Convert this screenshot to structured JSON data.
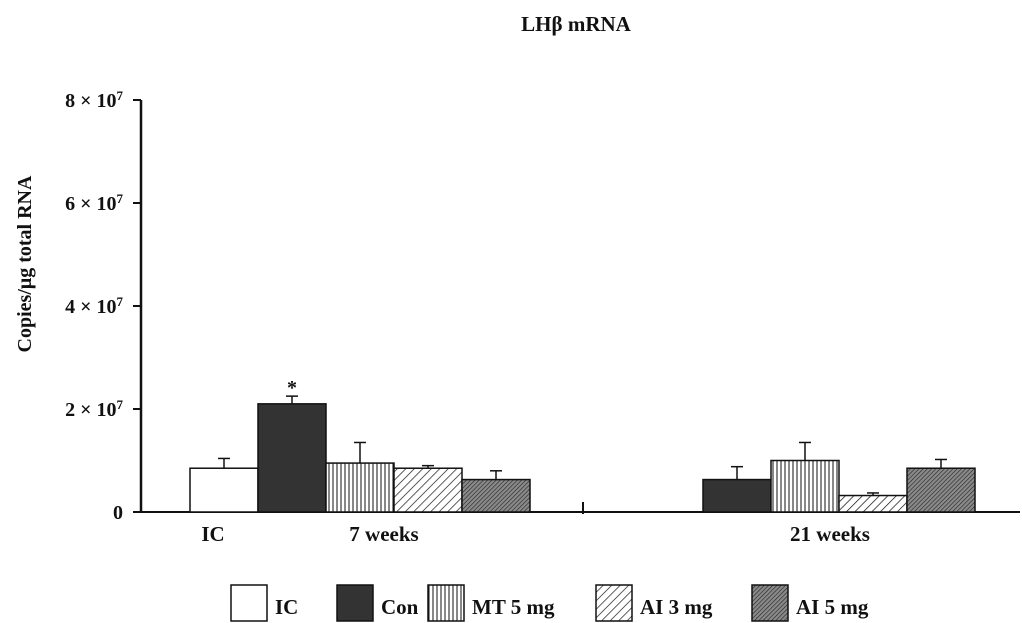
{
  "chart_data": {
    "type": "bar",
    "title": "LHβ mRNA",
    "ylabel": "Copies/μg total RNA",
    "xlabel": "",
    "ylim": [
      0,
      80000000
    ],
    "yticks": [
      {
        "value": 0,
        "base": "0",
        "exp": ""
      },
      {
        "value": 20000000,
        "base": "2 × 10",
        "exp": "7"
      },
      {
        "value": 40000000,
        "base": "4 × 10",
        "exp": "7"
      },
      {
        "value": 60000000,
        "base": "6 × 10",
        "exp": "7"
      },
      {
        "value": 80000000,
        "base": "8 × 10",
        "exp": "7"
      }
    ],
    "grid": false,
    "legend_position": "bottom",
    "groups": [
      {
        "label": "IC",
        "bars": [
          {
            "series": "IC",
            "value": 8500000,
            "error": 1900000,
            "annotation": ""
          }
        ]
      },
      {
        "label": "7 weeks",
        "bars": [
          {
            "series": "Con",
            "value": 21000000,
            "error": 1500000,
            "annotation": "*"
          },
          {
            "series": "MT 5 mg",
            "value": 9500000,
            "error": 4000000,
            "annotation": ""
          },
          {
            "series": "AI 3 mg",
            "value": 8500000,
            "error": 500000,
            "annotation": ""
          },
          {
            "series": "AI 5 mg",
            "value": 6300000,
            "error": 1700000,
            "annotation": ""
          }
        ]
      },
      {
        "label": "21 weeks",
        "bars": [
          {
            "series": "Con",
            "value": 6300000,
            "error": 2500000,
            "annotation": ""
          },
          {
            "series": "MT 5 mg",
            "value": 10000000,
            "error": 3500000,
            "annotation": ""
          },
          {
            "series": "AI 3 mg",
            "value": 3200000,
            "error": 500000,
            "annotation": ""
          },
          {
            "series": "AI 5 mg",
            "value": 8500000,
            "error": 1700000,
            "annotation": ""
          }
        ]
      }
    ],
    "legend": [
      {
        "name": "IC",
        "pattern": "white"
      },
      {
        "name": "Con",
        "pattern": "black"
      },
      {
        "name": "MT 5 mg",
        "pattern": "vertical-lines"
      },
      {
        "name": "AI 3 mg",
        "pattern": "diagonal-light"
      },
      {
        "name": "AI 5 mg",
        "pattern": "diagonal-dense"
      }
    ],
    "colors": {
      "ink": "#111111",
      "background": "#ffffff",
      "dense_fill": "#666666"
    }
  }
}
